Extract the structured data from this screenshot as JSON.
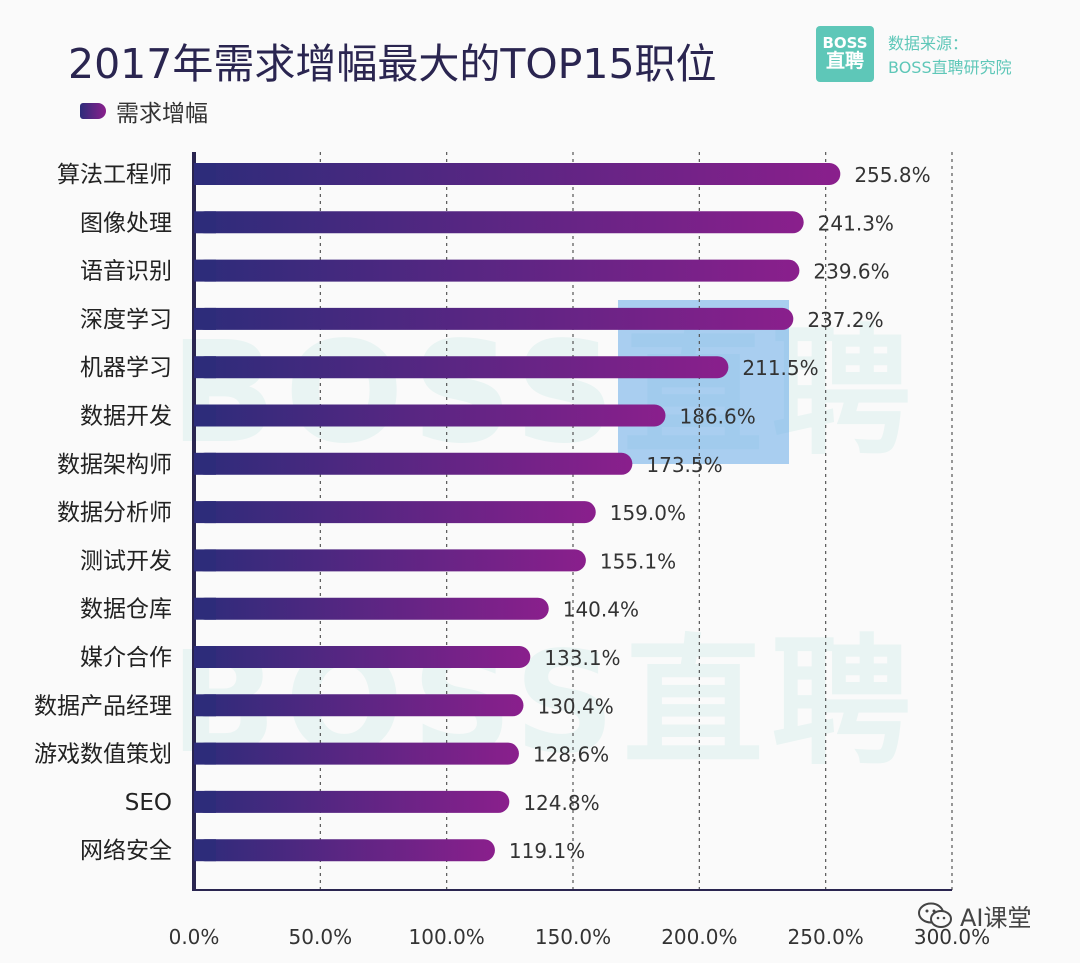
{
  "header": {
    "title": "2017年需求增幅最大的TOP15职位",
    "legend_label": "需求增幅"
  },
  "brand": {
    "logo_top": "BOSS",
    "logo_bottom": "直聘",
    "source_line1": "数据来源：",
    "source_line2": "BOSS直聘研究院",
    "color": "#5ec7b8"
  },
  "watermark": {
    "text": "BOSS直聘"
  },
  "footer": {
    "label": "AI课堂",
    "icon": "wechat-icon"
  },
  "colors": {
    "bar_start": "#2d2c7a",
    "bar_end": "#8a1f8c",
    "axis": "#2a2550",
    "grid": "#555"
  },
  "chart_data": {
    "type": "bar",
    "orientation": "horizontal",
    "title": "2017年需求增幅最大的TOP15职位",
    "legend": [
      "需求增幅"
    ],
    "legend_position": "top-left",
    "grid": true,
    "xlim": [
      0,
      300
    ],
    "x_tick_labels": [
      "0.0%",
      "50.0%",
      "100.0%",
      "150.0%",
      "200.0%",
      "250.0%",
      "300.0%"
    ],
    "x_ticks": [
      0,
      50,
      100,
      150,
      200,
      250,
      300
    ],
    "categories": [
      "算法工程师",
      "图像处理",
      "语音识别",
      "深度学习",
      "机器学习",
      "数据开发",
      "数据架构师",
      "数据分析师",
      "测试开发",
      "数据仓库",
      "媒介合作",
      "数据产品经理",
      "游戏数值策划",
      "SEO",
      "网络安全"
    ],
    "series": [
      {
        "name": "需求增幅",
        "values": [
          255.8,
          241.3,
          239.6,
          237.2,
          211.5,
          186.6,
          173.5,
          159.0,
          155.1,
          140.4,
          133.1,
          130.4,
          128.6,
          124.8,
          119.1
        ],
        "labels": [
          "255.8%",
          "241.3%",
          "239.6%",
          "237.2%",
          "211.5%",
          "186.6%",
          "173.5%",
          "159.0%",
          "155.1%",
          "140.4%",
          "133.1%",
          "130.4%",
          "128.6%",
          "124.8%",
          "119.1%"
        ]
      }
    ]
  }
}
